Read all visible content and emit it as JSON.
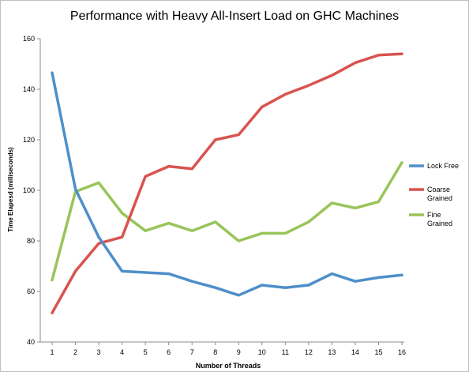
{
  "chart_data": {
    "type": "line",
    "title": "Performance with Heavy All-Insert Load on GHC Machines",
    "xlabel": "Number of Threads",
    "ylabel": "Time Elapesd  (milliseconds)",
    "x": [
      1,
      2,
      3,
      4,
      5,
      6,
      7,
      8,
      9,
      10,
      11,
      12,
      13,
      14,
      15,
      16
    ],
    "ylim": [
      40,
      160
    ],
    "yticks": [
      40,
      60,
      80,
      100,
      120,
      140,
      160
    ],
    "grid": false,
    "legend_position": "right",
    "series": [
      {
        "name": "Lock Free",
        "legend_lines": [
          "Lock Free"
        ],
        "color": "#4f8fc9",
        "values": [
          146.5,
          100.5,
          81.5,
          68,
          67.5,
          67,
          64,
          61.5,
          58.5,
          62.5,
          61.5,
          62.5,
          67,
          64,
          65.5,
          66.5
        ]
      },
      {
        "name": "Coarse Grained",
        "legend_lines": [
          "Coarse",
          "Grained"
        ],
        "color": "#d9534f",
        "values": [
          51.5,
          68,
          79,
          81.5,
          105.5,
          109.5,
          108.5,
          120,
          122,
          133,
          138,
          141.5,
          145.5,
          150.5,
          153.5,
          154
        ]
      },
      {
        "name": "Fine Grained",
        "legend_lines": [
          "Fine",
          "Grained"
        ],
        "color": "#99c45a",
        "values": [
          64.5,
          99.5,
          103,
          91,
          84,
          87,
          84,
          87.5,
          80,
          83,
          83,
          87.5,
          95,
          93,
          95.5,
          111
        ]
      }
    ]
  }
}
